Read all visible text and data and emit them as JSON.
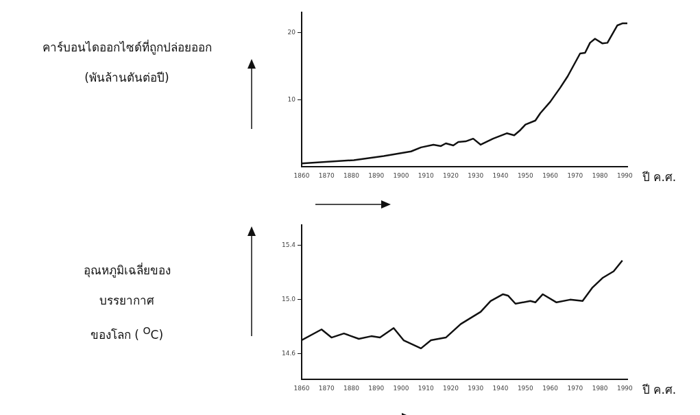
{
  "chart_data": [
    {
      "type": "line",
      "ylabel": "คาร์บอนไดออกไซด์ที่ถูกปล่อยออก\n(พันล้านตันต่อปี)",
      "xlabel": "ปี ค.ศ.",
      "x": [
        1860,
        1881,
        1893,
        1904,
        1908,
        1913,
        1916,
        1918,
        1921,
        1923,
        1926,
        1929,
        1932,
        1937,
        1942.5,
        1945.5,
        1948,
        1950,
        1954,
        1956,
        1960,
        1964,
        1967,
        1972,
        1974,
        1976,
        1978,
        1981,
        1983,
        1987,
        1989,
        1991
      ],
      "values": [
        0.5,
        1.0,
        1.6,
        2.3,
        2.9,
        3.3,
        3.1,
        3.5,
        3.2,
        3.7,
        3.8,
        4.2,
        3.3,
        4.2,
        5.0,
        4.7,
        5.5,
        6.3,
        6.9,
        8.0,
        9.7,
        11.8,
        13.5,
        16.9,
        17.0,
        18.5,
        19.1,
        18.4,
        18.5,
        21.1,
        21.4,
        21.4
      ],
      "color": "#111111",
      "xlim": [
        1860,
        1991
      ],
      "xticks": [
        1860,
        1870,
        1880,
        1890,
        1900,
        1910,
        1920,
        1930,
        1940,
        1950,
        1960,
        1970,
        1980,
        1990
      ],
      "ylim": [
        0,
        23
      ],
      "yticks": [
        10,
        20
      ]
    },
    {
      "type": "line",
      "ylabel": "อุณหภูมิเฉลี่ยของ\nบรรยากาศ\nของโลก ( $^{O}$C)",
      "xlabel": "ปี ค.ศ.",
      "x": [
        1860,
        1868,
        1872,
        1877,
        1883,
        1888,
        1891.5,
        1897,
        1901,
        1908,
        1912,
        1918,
        1924,
        1932,
        1936,
        1941,
        1943,
        1946,
        1952,
        1954,
        1957,
        1962.5,
        1968,
        1973,
        1977,
        1981,
        1985.5,
        1989
      ],
      "values": [
        14.7,
        14.78,
        14.72,
        14.75,
        14.71,
        14.73,
        14.72,
        14.79,
        14.7,
        14.64,
        14.7,
        14.72,
        14.82,
        14.91,
        14.99,
        15.04,
        15.03,
        14.97,
        14.99,
        14.98,
        15.04,
        14.98,
        15.0,
        14.99,
        15.09,
        15.16,
        15.21,
        15.29
      ],
      "color": "#111111",
      "xlim": [
        1860,
        1991
      ],
      "xticks": [
        1860,
        1870,
        1880,
        1890,
        1900,
        1910,
        1920,
        1930,
        1940,
        1950,
        1960,
        1970,
        1980,
        1990
      ],
      "ylim": [
        14.41,
        15.55
      ],
      "yticks": [
        14.6,
        {
          "value": 15,
          "label": "15.0"
        },
        15.4
      ]
    }
  ]
}
